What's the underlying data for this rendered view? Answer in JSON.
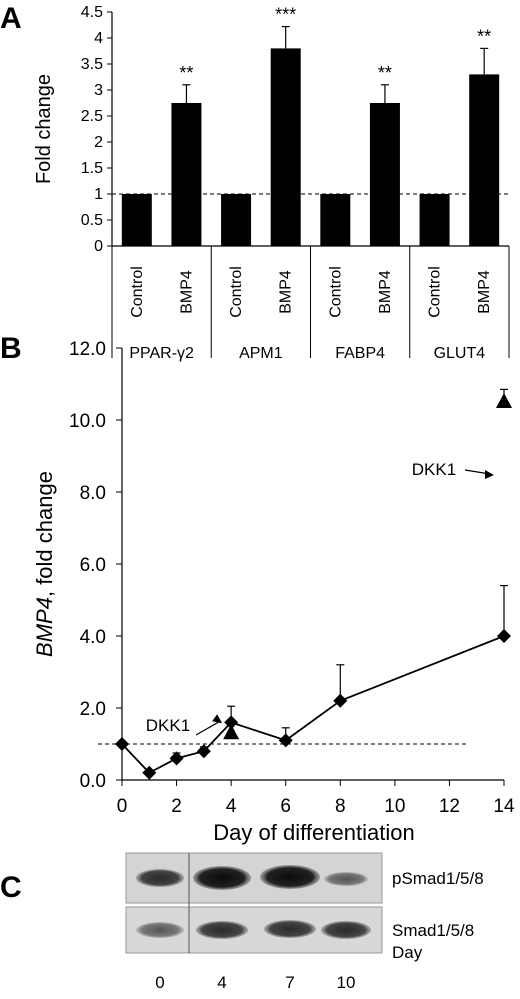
{
  "chart_data": [
    {
      "panel": "A",
      "type": "bar",
      "ylabel": "Fold change",
      "ylim": [
        0,
        4.5
      ],
      "yticks": [
        "0",
        "0.5",
        "1",
        "1.5",
        "2",
        "2.5",
        "3",
        "3.5",
        "4",
        "4.5"
      ],
      "reference_line": 1,
      "bars": [
        {
          "group": "PPAR-γ2",
          "label": "Control",
          "value": 1.0,
          "error": 0,
          "sig": ""
        },
        {
          "group": "PPAR-γ2",
          "label": "BMP4",
          "value": 2.75,
          "error": 0.35,
          "sig": "**"
        },
        {
          "group": "APM1",
          "label": "Control",
          "value": 1.0,
          "error": 0,
          "sig": ""
        },
        {
          "group": "APM1",
          "label": "BMP4",
          "value": 3.8,
          "error": 0.42,
          "sig": "***"
        },
        {
          "group": "FABP4",
          "label": "Control",
          "value": 1.0,
          "error": 0,
          "sig": ""
        },
        {
          "group": "FABP4",
          "label": "BMP4",
          "value": 2.75,
          "error": 0.35,
          "sig": "**"
        },
        {
          "group": "GLUT4",
          "label": "Control",
          "value": 1.0,
          "error": 0,
          "sig": ""
        },
        {
          "group": "GLUT4",
          "label": "BMP4",
          "value": 3.3,
          "error": 0.5,
          "sig": "**"
        }
      ],
      "groups": [
        "PPAR-γ2",
        "APM1",
        "FABP4",
        "GLUT4"
      ]
    },
    {
      "panel": "B",
      "type": "line",
      "xlabel": "Day of differentiation",
      "ylabel_italic": "BMP4",
      "ylabel_rest": ", fold change",
      "xlim": [
        0,
        14
      ],
      "ylim": [
        0,
        12
      ],
      "xticks": [
        "0",
        "2",
        "4",
        "6",
        "8",
        "10",
        "12",
        "14"
      ],
      "yticks": [
        "0.0",
        "2.0",
        "4.0",
        "6.0",
        "8.0",
        "10.0",
        "12.0"
      ],
      "reference_line": 1,
      "series": [
        {
          "x": [
            0,
            1,
            2,
            3,
            4,
            6,
            8,
            14
          ],
          "y": [
            1.0,
            0.2,
            0.6,
            0.8,
            1.6,
            1.1,
            2.2,
            4.0
          ],
          "error": [
            0,
            0,
            0.15,
            0.12,
            0.45,
            0.35,
            1.0,
            1.4
          ]
        }
      ],
      "dkk1_points": [
        {
          "x": 4,
          "y": 1.3,
          "error": 0
        },
        {
          "x": 14,
          "y": 10.5,
          "error": 0.35
        }
      ],
      "annotations": [
        "DKK1",
        "DKK1"
      ]
    }
  ],
  "blot": {
    "panel": "C",
    "rows": [
      "pSmad1/5/8",
      "Smad1/5/8"
    ],
    "day_label": "Day",
    "days": [
      "0",
      "4",
      "7",
      "10"
    ]
  }
}
